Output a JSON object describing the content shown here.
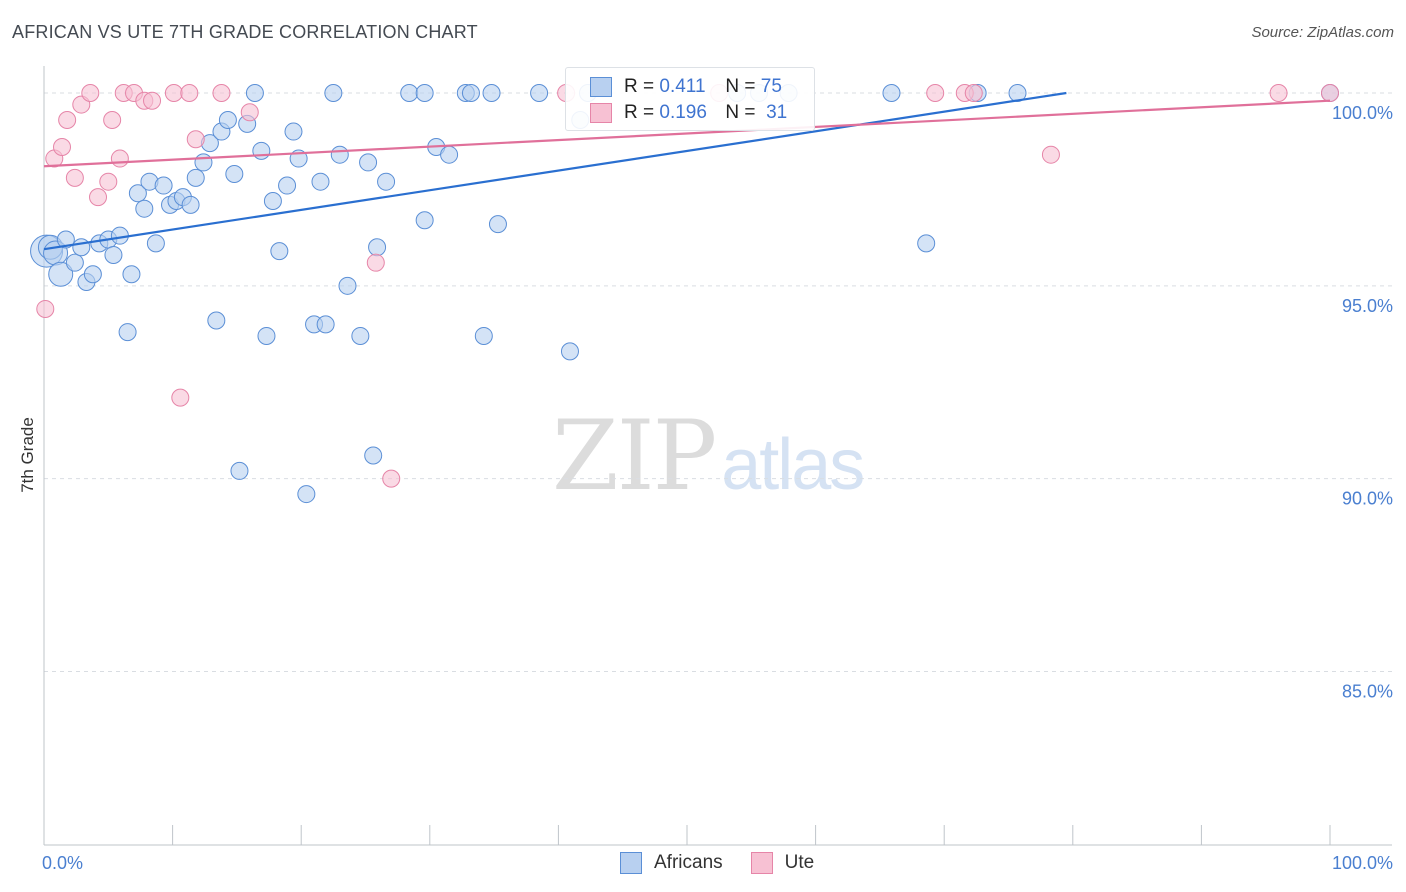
{
  "title": "AFRICAN VS UTE 7TH GRADE CORRELATION CHART",
  "source": "Source: ZipAtlas.com",
  "watermark": {
    "zip": "ZIP",
    "atlas": "atlas"
  },
  "legend": {
    "africans": {
      "r_label": "R =",
      "r_value": "0.411",
      "n_label": "N =",
      "n_value": "75"
    },
    "ute": {
      "r_label": "R =",
      "r_value": "0.196",
      "n_label": "N =",
      "n_value": "31"
    }
  },
  "bottom_legend": {
    "africans": "Africans",
    "ute": "Ute"
  },
  "colors": {
    "africans_fill": "#b8d0f0",
    "africans_stroke": "#5b8fd6",
    "africans_line": "#2a6fd0",
    "ute_fill": "#f7c1d3",
    "ute_stroke": "#e685a8",
    "ute_line": "#e0709a"
  },
  "chart_data": {
    "type": "scatter",
    "title": "AFRICAN VS UTE 7TH GRADE CORRELATION CHART",
    "xlabel": "",
    "ylabel": "7th Grade",
    "xlim": [
      0,
      100
    ],
    "ylim": [
      80.5,
      100.7
    ],
    "x_tick_labels": [
      "0.0%",
      "100.0%"
    ],
    "y_ticks": [
      100,
      95,
      90,
      85
    ],
    "y_tick_labels": [
      "100.0%",
      "95.0%",
      "90.0%",
      "85.0%"
    ],
    "series": [
      {
        "name": "Africans",
        "trend": {
          "x": [
            0,
            79.5
          ],
          "y": [
            95.95,
            100.0
          ]
        },
        "points": [
          {
            "x": 0.2,
            "y": 95.9,
            "s": 3
          },
          {
            "x": 0.5,
            "y": 96.0,
            "s": 2
          },
          {
            "x": 0.9,
            "y": 95.85,
            "s": 2
          },
          {
            "x": 1.3,
            "y": 95.3,
            "s": 2
          },
          {
            "x": 1.7,
            "y": 96.2,
            "s": 1
          },
          {
            "x": 2.4,
            "y": 95.6,
            "s": 1
          },
          {
            "x": 2.9,
            "y": 96.0,
            "s": 1
          },
          {
            "x": 3.3,
            "y": 95.1,
            "s": 1
          },
          {
            "x": 3.8,
            "y": 95.3,
            "s": 1
          },
          {
            "x": 4.3,
            "y": 96.1,
            "s": 1
          },
          {
            "x": 5.0,
            "y": 96.2,
            "s": 1
          },
          {
            "x": 5.4,
            "y": 95.8,
            "s": 1
          },
          {
            "x": 5.9,
            "y": 96.3,
            "s": 1
          },
          {
            "x": 6.5,
            "y": 93.8,
            "s": 1
          },
          {
            "x": 6.8,
            "y": 95.3,
            "s": 1
          },
          {
            "x": 7.3,
            "y": 97.4,
            "s": 1
          },
          {
            "x": 7.8,
            "y": 97.0,
            "s": 1
          },
          {
            "x": 8.2,
            "y": 97.7,
            "s": 1
          },
          {
            "x": 8.7,
            "y": 96.1,
            "s": 1
          },
          {
            "x": 9.3,
            "y": 97.6,
            "s": 1
          },
          {
            "x": 9.8,
            "y": 97.1,
            "s": 1
          },
          {
            "x": 10.3,
            "y": 97.2,
            "s": 1
          },
          {
            "x": 10.8,
            "y": 97.3,
            "s": 1
          },
          {
            "x": 11.4,
            "y": 97.1,
            "s": 1
          },
          {
            "x": 11.8,
            "y": 97.8,
            "s": 1
          },
          {
            "x": 12.4,
            "y": 98.2,
            "s": 1
          },
          {
            "x": 12.9,
            "y": 98.7,
            "s": 1
          },
          {
            "x": 13.4,
            "y": 94.1,
            "s": 1
          },
          {
            "x": 13.8,
            "y": 99.0,
            "s": 1
          },
          {
            "x": 14.3,
            "y": 99.3,
            "s": 1
          },
          {
            "x": 14.8,
            "y": 97.9,
            "s": 1
          },
          {
            "x": 15.2,
            "y": 90.2,
            "s": 1
          },
          {
            "x": 15.8,
            "y": 99.2,
            "s": 1
          },
          {
            "x": 16.4,
            "y": 100.0,
            "s": 1
          },
          {
            "x": 16.9,
            "y": 98.5,
            "s": 1
          },
          {
            "x": 17.3,
            "y": 93.7,
            "s": 1
          },
          {
            "x": 17.8,
            "y": 97.2,
            "s": 1
          },
          {
            "x": 18.3,
            "y": 95.9,
            "s": 1
          },
          {
            "x": 18.9,
            "y": 97.6,
            "s": 1
          },
          {
            "x": 19.4,
            "y": 99.0,
            "s": 1
          },
          {
            "x": 19.8,
            "y": 98.3,
            "s": 1
          },
          {
            "x": 20.4,
            "y": 89.6,
            "s": 1
          },
          {
            "x": 21.0,
            "y": 94.0,
            "s": 1
          },
          {
            "x": 21.5,
            "y": 97.7,
            "s": 1
          },
          {
            "x": 21.9,
            "y": 94.0,
            "s": 1
          },
          {
            "x": 22.5,
            "y": 100.0,
            "s": 1
          },
          {
            "x": 23.0,
            "y": 98.4,
            "s": 1
          },
          {
            "x": 23.6,
            "y": 95.0,
            "s": 1
          },
          {
            "x": 24.6,
            "y": 93.7,
            "s": 1
          },
          {
            "x": 25.2,
            "y": 98.2,
            "s": 1
          },
          {
            "x": 25.6,
            "y": 90.6,
            "s": 1
          },
          {
            "x": 25.9,
            "y": 96.0,
            "s": 1
          },
          {
            "x": 26.6,
            "y": 97.7,
            "s": 1
          },
          {
            "x": 28.4,
            "y": 100.0,
            "s": 1
          },
          {
            "x": 29.6,
            "y": 96.7,
            "s": 1
          },
          {
            "x": 29.6,
            "y": 100.0,
            "s": 1
          },
          {
            "x": 30.5,
            "y": 98.6,
            "s": 1
          },
          {
            "x": 31.5,
            "y": 98.4,
            "s": 1
          },
          {
            "x": 32.8,
            "y": 100.0,
            "s": 1
          },
          {
            "x": 33.2,
            "y": 100.0,
            "s": 1
          },
          {
            "x": 34.2,
            "y": 93.7,
            "s": 1
          },
          {
            "x": 34.8,
            "y": 100.0,
            "s": 1
          },
          {
            "x": 35.3,
            "y": 96.6,
            "s": 1
          },
          {
            "x": 38.5,
            "y": 100.0,
            "s": 1
          },
          {
            "x": 40.9,
            "y": 93.3,
            "s": 1
          },
          {
            "x": 41.7,
            "y": 99.3,
            "s": 1
          },
          {
            "x": 42.3,
            "y": 100.0,
            "s": 1
          },
          {
            "x": 53.9,
            "y": 100.0,
            "s": 1
          },
          {
            "x": 55.6,
            "y": 100.0,
            "s": 1
          },
          {
            "x": 57.9,
            "y": 100.0,
            "s": 1
          },
          {
            "x": 65.9,
            "y": 100.0,
            "s": 1
          },
          {
            "x": 68.6,
            "y": 96.1,
            "s": 1
          },
          {
            "x": 72.6,
            "y": 100.0,
            "s": 1
          },
          {
            "x": 75.7,
            "y": 100.0,
            "s": 1
          },
          {
            "x": 100.0,
            "y": 100.0,
            "s": 1
          }
        ]
      },
      {
        "name": "Ute",
        "trend": {
          "x": [
            0,
            100
          ],
          "y": [
            98.1,
            99.8
          ]
        },
        "points": [
          {
            "x": 0.1,
            "y": 94.4,
            "s": 1
          },
          {
            "x": 0.8,
            "y": 98.3,
            "s": 1
          },
          {
            "x": 1.4,
            "y": 98.6,
            "s": 1
          },
          {
            "x": 1.8,
            "y": 99.3,
            "s": 1
          },
          {
            "x": 2.4,
            "y": 97.8,
            "s": 1
          },
          {
            "x": 2.9,
            "y": 99.7,
            "s": 1
          },
          {
            "x": 3.6,
            "y": 100.0,
            "s": 1
          },
          {
            "x": 4.2,
            "y": 97.3,
            "s": 1
          },
          {
            "x": 5.0,
            "y": 97.7,
            "s": 1
          },
          {
            "x": 5.3,
            "y": 99.3,
            "s": 1
          },
          {
            "x": 5.9,
            "y": 98.3,
            "s": 1
          },
          {
            "x": 6.2,
            "y": 100.0,
            "s": 1
          },
          {
            "x": 7.0,
            "y": 100.0,
            "s": 1
          },
          {
            "x": 7.8,
            "y": 99.8,
            "s": 1
          },
          {
            "x": 8.4,
            "y": 99.8,
            "s": 1
          },
          {
            "x": 10.1,
            "y": 100.0,
            "s": 1
          },
          {
            "x": 10.6,
            "y": 92.1,
            "s": 1
          },
          {
            "x": 11.3,
            "y": 100.0,
            "s": 1
          },
          {
            "x": 11.8,
            "y": 98.8,
            "s": 1
          },
          {
            "x": 13.8,
            "y": 100.0,
            "s": 1
          },
          {
            "x": 16.0,
            "y": 99.5,
            "s": 1
          },
          {
            "x": 25.8,
            "y": 95.6,
            "s": 1
          },
          {
            "x": 27.0,
            "y": 90.0,
            "s": 1
          },
          {
            "x": 40.6,
            "y": 100.0,
            "s": 1
          },
          {
            "x": 52.5,
            "y": 100.0,
            "s": 1
          },
          {
            "x": 69.3,
            "y": 100.0,
            "s": 1
          },
          {
            "x": 71.6,
            "y": 100.0,
            "s": 1
          },
          {
            "x": 72.3,
            "y": 100.0,
            "s": 1
          },
          {
            "x": 78.3,
            "y": 98.4,
            "s": 1
          },
          {
            "x": 96.0,
            "y": 100.0,
            "s": 1
          },
          {
            "x": 100.0,
            "y": 100.0,
            "s": 1
          }
        ]
      }
    ]
  }
}
